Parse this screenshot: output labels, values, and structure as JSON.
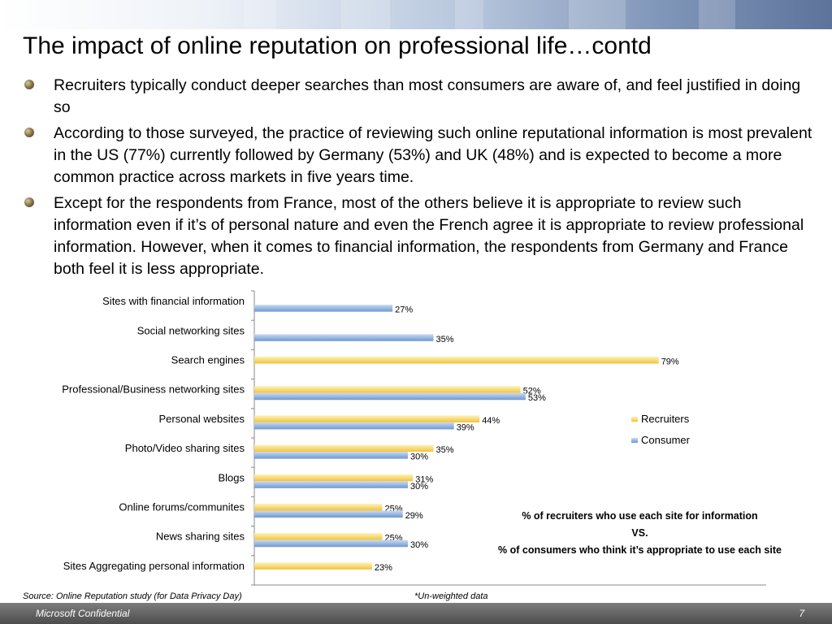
{
  "slide": {
    "title": "The impact of online reputation on professional life…contd",
    "bullets": [
      "Recruiters typically conduct deeper searches than most consumers are aware of, and feel justified in doing so",
      "According to those surveyed, the practice of reviewing such online reputational information is most prevalent in the US (77%) currently followed by Germany (53%) and UK (48%) and is expected to become a more common practice across markets in five years time.",
      "Except for the respondents from France, most of the others believe it is appropriate to review such information even if it’s of personal nature and even the French agree it is appropriate to review professional information. However, when it comes to financial information, the respondents from Germany and France both feel it is less appropriate."
    ],
    "caption": {
      "line1": "% of recruiters who use each site for information",
      "line2": "VS.",
      "line3": "% of consumers who think it’s appropriate to use each site"
    },
    "source": "Source: Online Reputation study (for Data Privacy Day)",
    "note": "*Un-weighted data",
    "footer_left": "Microsoft Confidential",
    "footer_right": "7"
  },
  "chart_data": {
    "type": "bar",
    "orientation": "horizontal",
    "categories": [
      "Sites with financial information",
      "Social networking sites",
      "Search engines",
      "Professional/Business networking sites",
      "Personal websites",
      "Photo/Video sharing sites",
      "Blogs",
      "Online forums/communites",
      "News sharing sites",
      "Sites Aggregating personal information"
    ],
    "series": [
      {
        "name": "Recruiters",
        "color": "#f0c33c",
        "values": [
          null,
          null,
          79,
          52,
          44,
          35,
          31,
          25,
          25,
          23
        ]
      },
      {
        "name": "Consumer",
        "color": "#6f97d1",
        "values": [
          27,
          35,
          null,
          53,
          39,
          30,
          30,
          29,
          30,
          null
        ]
      }
    ],
    "value_suffix": "%",
    "xlim": [
      0,
      100
    ],
    "legend_position": "right",
    "grid": false
  }
}
